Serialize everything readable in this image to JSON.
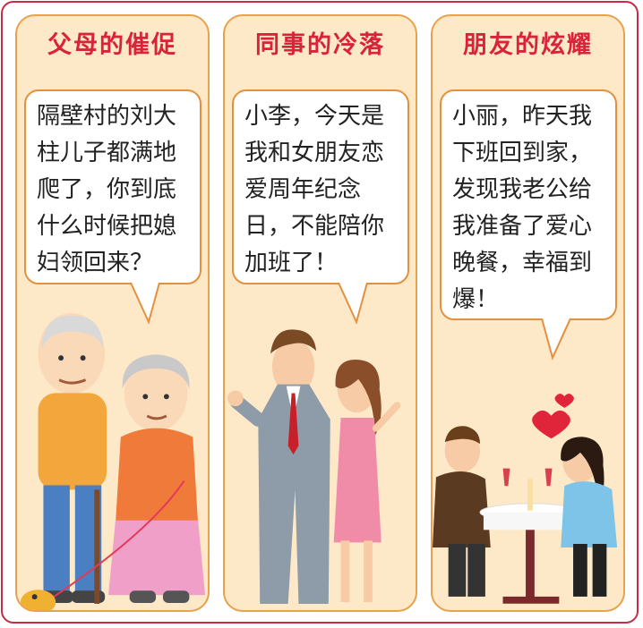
{
  "panels": [
    {
      "title": "父母的催促",
      "speech": "隔壁村的刘大柱儿子都满地爬了，你到底什么时候把媳妇领回来？"
    },
    {
      "title": "同事的冷落",
      "speech": "小李，今天是我和女朋友恋爱周年纪念日，不能陪你加班了！"
    },
    {
      "title": "朋友的炫耀",
      "speech": "小丽，昨天我下班回到家，发现我老公给我准备了爱心晚餐，幸福到爆！"
    }
  ],
  "colors": {
    "frame": "#c62c45",
    "panel_bg": "#fde8c8",
    "panel_border": "#e9a24c",
    "title": "#d8233a"
  }
}
